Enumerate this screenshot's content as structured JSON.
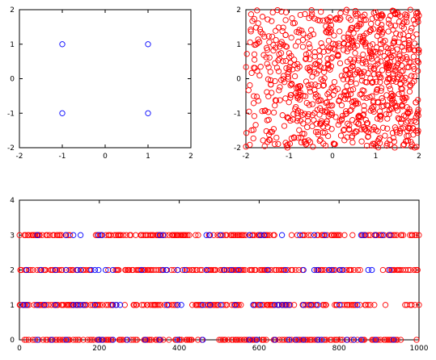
{
  "chart_data": [
    {
      "type": "scatter",
      "xlim": [
        -2,
        2
      ],
      "ylim": [
        -2,
        2
      ],
      "xticks": [
        "-2",
        "-1",
        "0",
        "1",
        "2"
      ],
      "yticks": [
        "-2",
        "-1",
        "0",
        "1",
        "2"
      ],
      "grid": false,
      "series": [
        {
          "color": "#0000ff",
          "marker": "circle-open",
          "points": [
            [
              -1,
              1
            ],
            [
              1,
              1
            ],
            [
              -1,
              -1
            ],
            [
              1,
              -1
            ]
          ]
        }
      ]
    },
    {
      "type": "scatter",
      "xlim": [
        -2,
        2
      ],
      "ylim": [
        -2,
        2
      ],
      "xticks": [
        "-2",
        "-1",
        "0",
        "1",
        "2"
      ],
      "yticks": [
        "-2",
        "-1",
        "0",
        "1",
        "2"
      ],
      "grid": false,
      "series": [
        {
          "color": "#ff0000",
          "marker": "circle-open",
          "description_values": "about 900 points spread over [-2,2] x [-2,2], denser toward the right/top-right region",
          "sample_count": 900,
          "seed": 7
        }
      ]
    },
    {
      "type": "scatter",
      "xlim": [
        0,
        1000
      ],
      "ylim": [
        0,
        4
      ],
      "xticks": [
        "0",
        "200",
        "400",
        "600",
        "800",
        "1000"
      ],
      "yticks": [
        "0",
        "1",
        "2",
        "3",
        "4"
      ],
      "grid": false,
      "levels": [
        0,
        1,
        2,
        3
      ],
      "series": [
        {
          "color": "#ff0000",
          "marker": "circle-open",
          "x_range": [
            0,
            1000
          ],
          "levels": [
            0,
            1,
            2,
            3
          ],
          "seed": 11
        },
        {
          "color": "#0000ff",
          "marker": "circle-open",
          "x_range": [
            0,
            1000
          ],
          "levels": [
            0,
            1,
            2,
            3
          ],
          "seed": 23
        }
      ]
    }
  ]
}
